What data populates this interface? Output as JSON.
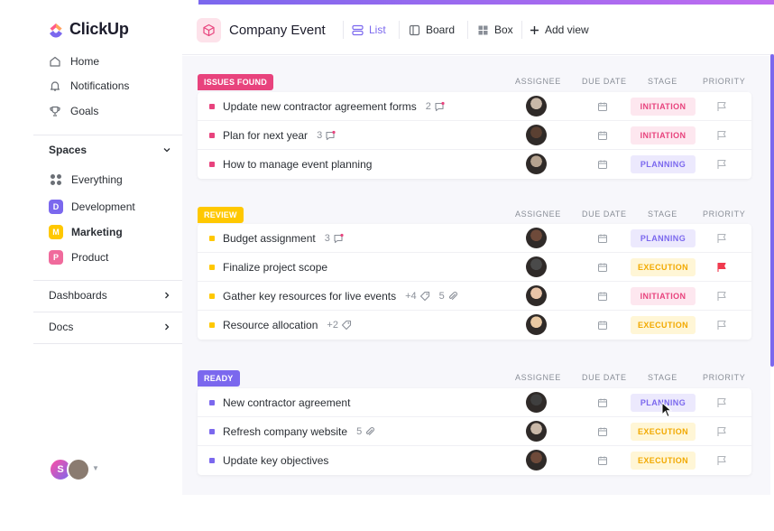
{
  "app": {
    "name": "ClickUp"
  },
  "sidebar": {
    "nav": [
      {
        "label": "Home",
        "icon": "home-icon"
      },
      {
        "label": "Notifications",
        "icon": "bell-icon"
      },
      {
        "label": "Goals",
        "icon": "trophy-icon"
      }
    ],
    "spaces_label": "Spaces",
    "spaces": [
      {
        "label": "Everything",
        "letter": "",
        "color": ""
      },
      {
        "label": "Development",
        "letter": "D",
        "color": "#7b68ee"
      },
      {
        "label": "Marketing",
        "letter": "M",
        "color": "#ffc800"
      },
      {
        "label": "Product",
        "letter": "P",
        "color": "#f06a9c"
      }
    ],
    "dashboards_label": "Dashboards",
    "docs_label": "Docs",
    "user_initial": "S"
  },
  "header": {
    "title": "Company Event",
    "views": [
      {
        "label": "List",
        "icon": "list-icon",
        "active": true
      },
      {
        "label": "Board",
        "icon": "board-icon",
        "active": false
      },
      {
        "label": "Box",
        "icon": "box-icon",
        "active": false
      },
      {
        "label": "Add view",
        "icon": "plus-icon",
        "active": false
      }
    ]
  },
  "columns": {
    "assignee": "ASSIGNEE",
    "due_date": "DUE DATE",
    "stage": "STAGE",
    "priority": "PRIORITY"
  },
  "groups": [
    {
      "label": "ISSUES FOUND",
      "color": "#e8437d",
      "tasks": [
        {
          "name": "Update new contractor agreement forms",
          "meta": "2",
          "meta_icon": "comment-icon",
          "meta2": "",
          "meta2_icon": "",
          "avatar_color": "#c9b8a8",
          "stage": "INITIATION",
          "stage_color": "#e8437d",
          "stage_bg": "#fde7ef",
          "flag_color": "#b0b4ba"
        },
        {
          "name": "Plan for next year",
          "meta": "3",
          "meta_icon": "comment-icon",
          "meta2": "",
          "meta2_icon": "",
          "avatar_color": "#5a4032",
          "stage": "INITIATION",
          "stage_color": "#e8437d",
          "stage_bg": "#fde7ef",
          "flag_color": "#b0b4ba"
        },
        {
          "name": "How to manage event planning",
          "meta": "",
          "meta_icon": "",
          "meta2": "",
          "meta2_icon": "",
          "avatar_color": "#b5a28f",
          "stage": "PLANNING",
          "stage_color": "#7b68ee",
          "stage_bg": "#ece9fd",
          "flag_color": "#b0b4ba"
        }
      ]
    },
    {
      "label": "REVIEW",
      "color": "#ffc800",
      "tasks": [
        {
          "name": "Budget assignment",
          "meta": "3",
          "meta_icon": "comment-icon",
          "meta2": "",
          "meta2_icon": "",
          "avatar_color": "#6e4a3a",
          "stage": "PLANNING",
          "stage_color": "#7b68ee",
          "stage_bg": "#ece9fd",
          "flag_color": "#b0b4ba"
        },
        {
          "name": "Finalize project scope",
          "meta": "",
          "meta_icon": "",
          "meta2": "",
          "meta2_icon": "",
          "avatar_color": "#4a4a4a",
          "stage": "EXECUTION",
          "stage_color": "#f2a900",
          "stage_bg": "#fff6d6",
          "flag_color": "#f03a4e"
        },
        {
          "name": "Gather key resources for live events",
          "meta": "+4",
          "meta_icon": "tag-icon",
          "meta2": "5",
          "meta2_icon": "paperclip-icon",
          "avatar_color": "#e8c4a8",
          "stage": "INITIATION",
          "stage_color": "#e8437d",
          "stage_bg": "#fde7ef",
          "flag_color": "#b0b4ba"
        },
        {
          "name": "Resource allocation",
          "meta": "+2",
          "meta_icon": "tag-icon",
          "meta2": "",
          "meta2_icon": "",
          "avatar_color": "#e9c9a3",
          "stage": "EXECUTION",
          "stage_color": "#f2a900",
          "stage_bg": "#fff6d6",
          "flag_color": "#b0b4ba"
        }
      ]
    },
    {
      "label": "READY",
      "color": "#7b68ee",
      "tasks": [
        {
          "name": "New contractor agreement",
          "meta": "",
          "meta_icon": "",
          "meta2": "",
          "meta2_icon": "",
          "avatar_color": "#3f3f3f",
          "stage": "PLANNING",
          "stage_color": "#7b68ee",
          "stage_bg": "#ece9fd",
          "flag_color": "#b0b4ba"
        },
        {
          "name": "Refresh company website",
          "meta": "5",
          "meta_icon": "paperclip-icon",
          "meta2": "",
          "meta2_icon": "",
          "avatar_color": "#c9b8a8",
          "stage": "EXECUTION",
          "stage_color": "#f2a900",
          "stage_bg": "#fff6d6",
          "flag_color": "#b0b4ba"
        },
        {
          "name": "Update key objectives",
          "meta": "",
          "meta_icon": "",
          "meta2": "",
          "meta2_icon": "",
          "avatar_color": "#6e4a3a",
          "stage": "EXECUTION",
          "stage_color": "#f2a900",
          "stage_bg": "#fff6d6",
          "flag_color": "#b0b4ba"
        }
      ]
    }
  ]
}
